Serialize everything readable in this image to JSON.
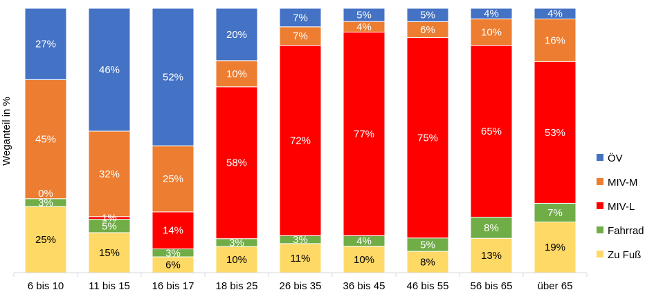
{
  "chart_data": {
    "type": "bar",
    "stacked": true,
    "title": "",
    "xlabel": "",
    "ylabel": "Weganteil in %",
    "ylim": [
      0,
      100
    ],
    "grid": false,
    "legend_position": "right",
    "categories": [
      "6 bis 10",
      "11 bis 15",
      "16 bis 17",
      "18 bis 25",
      "26 bis 35",
      "36 bis 45",
      "46 bis 55",
      "56 bis 65",
      "über 65"
    ],
    "series": [
      {
        "name": "Zu Fuß",
        "color": "#FFD966",
        "values": [
          25,
          15,
          6,
          10,
          11,
          10,
          8,
          13,
          19
        ],
        "labels": [
          "25%",
          "15%",
          "6%",
          "10%",
          "11%",
          "10%",
          "8%",
          "13%",
          "19%"
        ]
      },
      {
        "name": "Fahrrad",
        "color": "#70AD47",
        "values": [
          3,
          5,
          3,
          3,
          3,
          4,
          5,
          8,
          7
        ],
        "labels": [
          "3%",
          "5%",
          "3%",
          "3%",
          "3%",
          "4%",
          "5%",
          "8%",
          "7%"
        ]
      },
      {
        "name": "MIV-L",
        "color": "#FF0000",
        "values": [
          0,
          1,
          14,
          58,
          72,
          77,
          75,
          65,
          53
        ],
        "labels": [
          "",
          "1%",
          "14%",
          "58%",
          "72%",
          "77%",
          "75%",
          "65%",
          "53%"
        ]
      },
      {
        "name": "MIV-M",
        "color": "#ED7D31",
        "values": [
          45,
          32,
          25,
          10,
          7,
          4,
          6,
          10,
          16
        ],
        "labels": [
          "45%",
          "32%",
          "25%",
          "10%",
          "7%",
          "4%",
          "6%",
          "10%",
          "16%"
        ]
      },
      {
        "name": "ÖV",
        "color": "#4472C4",
        "values": [
          27,
          46,
          52,
          20,
          7,
          5,
          5,
          4,
          4
        ],
        "labels": [
          "27%",
          "46%",
          "52%",
          "20%",
          "7%",
          "5%",
          "5%",
          "4%",
          "4%"
        ]
      }
    ],
    "annotations": [
      {
        "category": "6 bis 10",
        "series": "MIV-L",
        "text": "0%"
      }
    ],
    "legend_order": [
      "ÖV",
      "MIV-M",
      "MIV-L",
      "Fahrrad",
      "Zu Fuß"
    ]
  }
}
